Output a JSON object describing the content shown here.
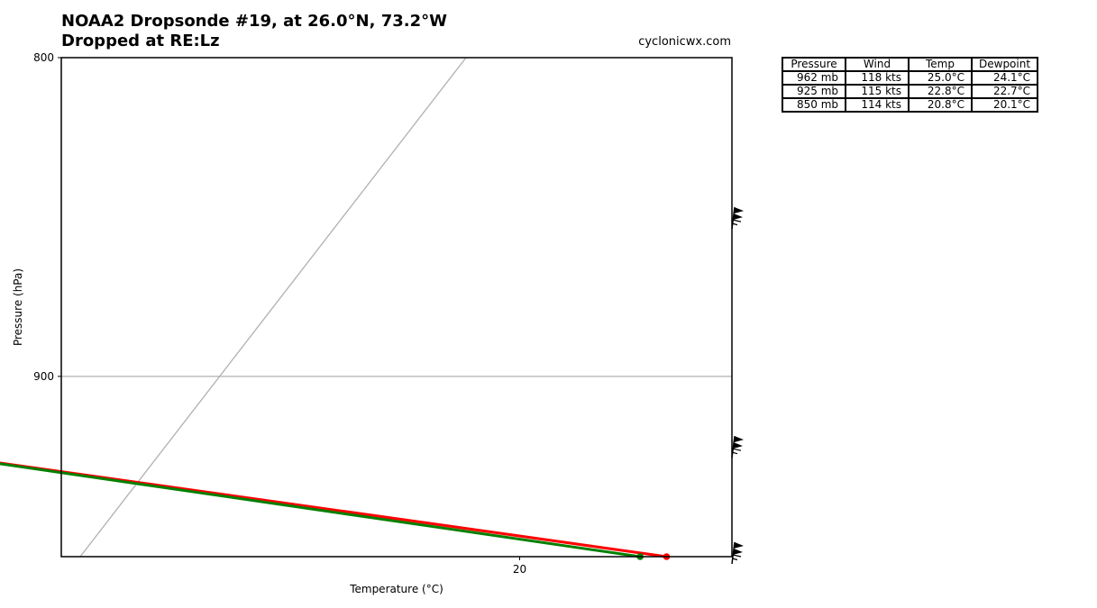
{
  "header": {
    "title_line1": "NOAA2 Dropsonde #19, at 26.0°N, 73.2°W",
    "title_line2": "Dropped at RE:Lz",
    "source": "cyclonicwx.com"
  },
  "chart_data": {
    "type": "line",
    "subtype": "skew-t sounding",
    "xlabel": "Temperature (°C)",
    "ylabel": "Pressure (hPa)",
    "x_tick_labels": [
      "20"
    ],
    "y_tick_labels": [
      "800",
      "900"
    ],
    "ylim": [
      800,
      962
    ],
    "y_scale": "log",
    "grid_pressure_lines": [
      900
    ],
    "series": [
      {
        "color": "#ff0000",
        "points": [
          {
            "pressure": 962,
            "temp": 25.0
          },
          {
            "pressure": 925,
            "temp": 22.8
          },
          {
            "pressure": 850,
            "temp": 20.8
          }
        ]
      },
      {
        "color": "#008000",
        "points": [
          {
            "pressure": 962,
            "temp": 24.1
          },
          {
            "pressure": 925,
            "temp": 22.7
          },
          {
            "pressure": 850,
            "temp": 20.1
          }
        ]
      }
    ],
    "wind_barbs": [
      {
        "pressure": 962,
        "speed_kts": 118
      },
      {
        "pressure": 925,
        "speed_kts": 115
      },
      {
        "pressure": 850,
        "speed_kts": 114
      }
    ]
  },
  "table": {
    "headers": [
      "Pressure",
      "Wind",
      "Temp",
      "Dewpoint"
    ],
    "rows": [
      [
        "962 mb",
        "118 kts",
        "25.0°C",
        "24.1°C"
      ],
      [
        "925 mb",
        "115 kts",
        "22.8°C",
        "22.7°C"
      ],
      [
        "850 mb",
        "114 kts",
        "20.8°C",
        "20.1°C"
      ]
    ]
  }
}
